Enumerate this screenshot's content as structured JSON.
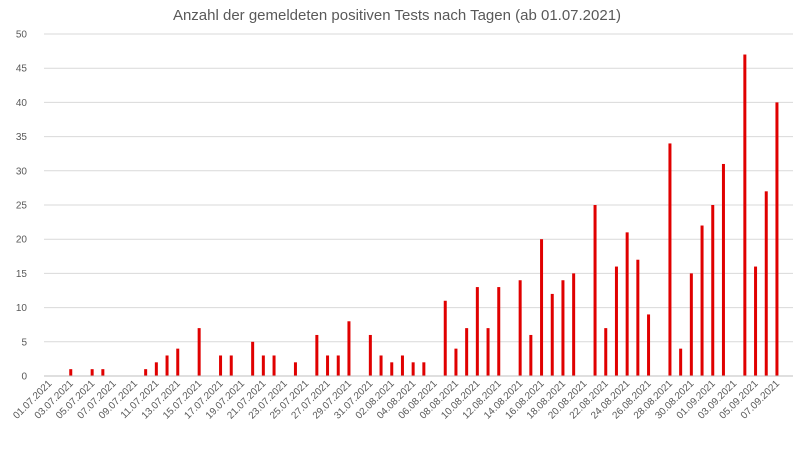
{
  "chart_data": {
    "type": "bar",
    "title": "Anzahl der gemeldeten positiven Tests nach Tagen (ab 01.07.2021)",
    "xlabel": "",
    "ylabel": "",
    "ylim": [
      0,
      50
    ],
    "yticks": [
      0,
      5,
      10,
      15,
      20,
      25,
      30,
      35,
      40,
      45,
      50
    ],
    "grid": true,
    "legend": "none",
    "bar_color": "#e00000",
    "categories": [
      "01.07.2021",
      "02.07.2021",
      "03.07.2021",
      "04.07.2021",
      "05.07.2021",
      "06.07.2021",
      "07.07.2021",
      "08.07.2021",
      "09.07.2021",
      "10.07.2021",
      "11.07.2021",
      "12.07.2021",
      "13.07.2021",
      "14.07.2021",
      "15.07.2021",
      "16.07.2021",
      "17.07.2021",
      "18.07.2021",
      "19.07.2021",
      "20.07.2021",
      "21.07.2021",
      "22.07.2021",
      "23.07.2021",
      "24.07.2021",
      "25.07.2021",
      "26.07.2021",
      "27.07.2021",
      "28.07.2021",
      "29.07.2021",
      "30.07.2021",
      "31.07.2021",
      "01.08.2021",
      "02.08.2021",
      "03.08.2021",
      "04.08.2021",
      "05.08.2021",
      "06.08.2021",
      "07.08.2021",
      "08.08.2021",
      "09.08.2021",
      "10.08.2021",
      "11.08.2021",
      "12.08.2021",
      "13.08.2021",
      "14.08.2021",
      "15.08.2021",
      "16.08.2021",
      "17.08.2021",
      "18.08.2021",
      "19.08.2021",
      "20.08.2021",
      "21.08.2021",
      "22.08.2021",
      "23.08.2021",
      "24.08.2021",
      "25.08.2021",
      "26.08.2021",
      "27.08.2021",
      "28.08.2021",
      "29.08.2021",
      "30.08.2021",
      "31.08.2021",
      "01.09.2021",
      "02.09.2021",
      "03.09.2021",
      "04.09.2021",
      "05.09.2021",
      "06.09.2021",
      "07.09.2021",
      "08.09.2021"
    ],
    "values": [
      0,
      0,
      1,
      0,
      1,
      1,
      0,
      0,
      0,
      1,
      2,
      3,
      4,
      0,
      7,
      0,
      3,
      3,
      0,
      5,
      3,
      3,
      0,
      2,
      0,
      6,
      3,
      3,
      8,
      0,
      6,
      3,
      2,
      3,
      2,
      2,
      0,
      11,
      4,
      7,
      13,
      7,
      13,
      0,
      14,
      6,
      20,
      12,
      14,
      15,
      0,
      25,
      7,
      16,
      21,
      17,
      9,
      0,
      34,
      4,
      15,
      22,
      25,
      31,
      0,
      47,
      16,
      27,
      40,
      0
    ],
    "label_every": 2
  }
}
